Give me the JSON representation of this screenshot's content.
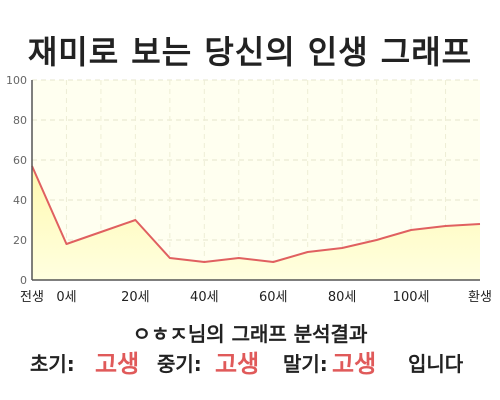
{
  "title": "재미로 보는 당신의 인생 그래프",
  "subtitle": "ㅇㅎㅈ님의 그래프 분석결과",
  "results": {
    "early_label": "초기:",
    "early_value": "고생",
    "middle_label": "중기:",
    "middle_value": "고생",
    "late_label": "말기:",
    "late_value": "고생",
    "ending": "입니다"
  },
  "colors": {
    "line": "#e06060",
    "fill_top": "#fff9b0",
    "fill_bottom": "#ffffe0",
    "plot_bg": "#fffff0",
    "accent": "#e05a5a"
  },
  "chart_data": {
    "type": "area",
    "title": "",
    "xlabel": "",
    "ylabel": "",
    "ylim": [
      0,
      100
    ],
    "yticks": [
      "0",
      "20",
      "40",
      "60",
      "80",
      "100"
    ],
    "categories": [
      "전생",
      "0세",
      "",
      "20세",
      "",
      "40세",
      "",
      "60세",
      "",
      "80세",
      "",
      "100세",
      "",
      "환생"
    ],
    "values": [
      57,
      18,
      24,
      30,
      11,
      9,
      11,
      9,
      14,
      16,
      20,
      25,
      27,
      28
    ],
    "grid": true,
    "legend": "none"
  }
}
